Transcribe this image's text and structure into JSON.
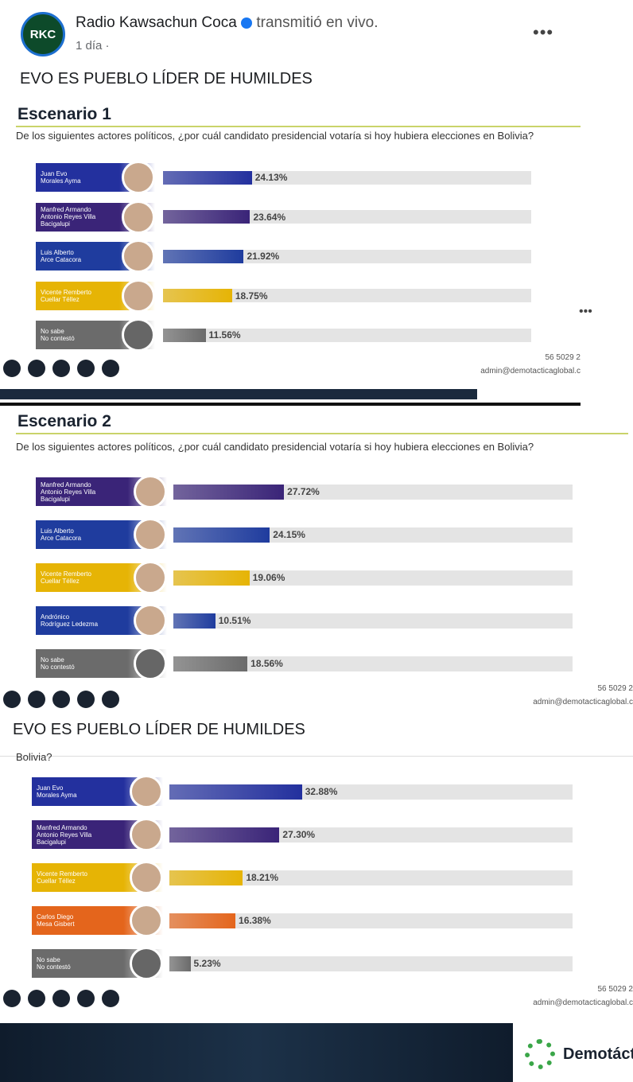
{
  "post": {
    "page_name": "Radio Kawsachun Coca",
    "action": "transmitió en vivo.",
    "time": "1 día ·",
    "logo": "RKC",
    "caption": "EVO ES PUEBLO LÍDER DE HUMILDES",
    "caption_repeat": "EVO ES PUEBLO LÍDER DE HUMILDES",
    "brand": "Demotáct"
  },
  "chart_data": [
    {
      "type": "bar",
      "title": "Escenario 1",
      "subtitle": "De los siguientes actores políticos, ¿por cuál candidato presidencial votaría si hoy hubiera elecciones en Bolivia?",
      "categories": [
        "Juan Evo\nMorales Ayma",
        "Manfred Armando\nAntonio Reyes Villa\nBacigalupi",
        "Luis Alberto\nArce Catacora",
        "Vicente Remberto\nCuellar Téllez",
        "No sabe\nNo contestó"
      ],
      "values": [
        24.13,
        23.64,
        21.92,
        18.75,
        11.56
      ],
      "value_labels": [
        "24.13%",
        "23.64%",
        "21.92%",
        "18.75%",
        "11.56%"
      ],
      "colors": [
        "#23309e",
        "#3a2478",
        "#1f3c9e",
        "#e6b405",
        "#6b6b6b"
      ],
      "xlim": [
        0,
        100
      ],
      "phone": "56 5029 2",
      "email": "admin@demotacticaglobal.c"
    },
    {
      "type": "bar",
      "title": "Escenario 2",
      "subtitle": "De los siguientes actores políticos, ¿por cuál candidato presidencial votaría si hoy hubiera elecciones en Bolivia?",
      "categories": [
        "Manfred Armando\nAntonio Reyes Villa\nBacigalupi",
        "Luis Alberto\nArce Catacora",
        "Vicente Remberto\nCuellar Téllez",
        "Andrónico\nRodríguez Ledezma",
        "No sabe\nNo contestó"
      ],
      "values": [
        27.72,
        24.15,
        19.06,
        10.51,
        18.56
      ],
      "value_labels": [
        "27.72%",
        "24.15%",
        "19.06%",
        "10.51%",
        "18.56%"
      ],
      "colors": [
        "#3a2478",
        "#1f3c9e",
        "#e6b405",
        "#1f3c9e",
        "#6b6b6b"
      ],
      "xlim": [
        0,
        100
      ],
      "phone": "56 5029 2",
      "email": "admin@demotacticaglobal.c"
    },
    {
      "type": "bar",
      "subtitle": "Bolivia?",
      "categories": [
        "Juan Evo\nMorales Ayma",
        "Manfred Armando\nAntonio Reyes Villa\nBacigalupi",
        "Vicente Remberto\nCuellar Téllez",
        "Carlos Diego\nMesa Gisbert",
        "No sabe\nNo contestó"
      ],
      "values": [
        32.88,
        27.3,
        18.21,
        16.38,
        5.23
      ],
      "value_labels": [
        "32.88%",
        "27.30%",
        "18.21%",
        "16.38%",
        "5.23%"
      ],
      "colors": [
        "#23309e",
        "#3a2478",
        "#e6b405",
        "#e4651c",
        "#6b6b6b"
      ],
      "xlim": [
        0,
        100
      ],
      "phone": "56 5029 2",
      "email": "admin@demotacticaglobal.c"
    }
  ]
}
